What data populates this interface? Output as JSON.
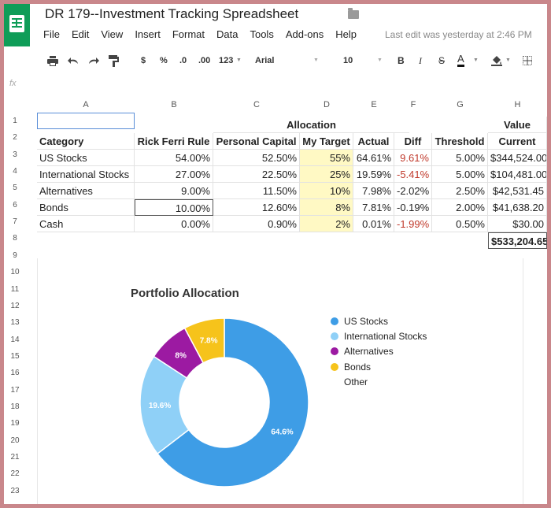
{
  "document": {
    "title": "DR 179--Investment Tracking Spreadsheet",
    "last_edit": "Last edit was yesterday at 2:46 PM"
  },
  "menu": [
    "File",
    "Edit",
    "View",
    "Insert",
    "Format",
    "Data",
    "Tools",
    "Add-ons",
    "Help"
  ],
  "toolbar": {
    "currency": "$",
    "percent": "%",
    "decrease_decimals": ".0",
    "increase_decimals": ".00",
    "more_formats": "123",
    "font": "Arial",
    "font_size": "10",
    "bold": "B",
    "italic": "I",
    "strikethrough": "S",
    "text_color": "A"
  },
  "formula_bar": {
    "icon": "fx"
  },
  "columns": [
    "A",
    "B",
    "C",
    "D",
    "E",
    "F",
    "G",
    "H"
  ],
  "row_numbers": [
    "1",
    "2",
    "3",
    "4",
    "5",
    "6",
    "7",
    "8",
    "9",
    "10",
    "11",
    "12",
    "13",
    "14",
    "15",
    "16",
    "17",
    "18",
    "19",
    "20",
    "21",
    "22",
    "23"
  ],
  "sheet": {
    "group_headers": {
      "allocation": "Allocation",
      "value": "Value"
    },
    "headers": [
      "Category",
      "Rick Ferri Rule",
      "Personal Capital",
      "My Target",
      "Actual",
      "Diff",
      "Threshold",
      "Current"
    ],
    "rows": [
      [
        "US Stocks",
        "54.00%",
        "52.50%",
        "55%",
        "64.61%",
        "9.61%",
        "5.00%",
        "$344,524.00"
      ],
      [
        "International Stocks",
        "27.00%",
        "22.50%",
        "25%",
        "19.59%",
        "-5.41%",
        "5.00%",
        "$104,481.00"
      ],
      [
        "Alternatives",
        "9.00%",
        "11.50%",
        "10%",
        "7.98%",
        "-2.02%",
        "2.50%",
        "$42,531.45"
      ],
      [
        "Bonds",
        "10.00%",
        "12.60%",
        "8%",
        "7.81%",
        "-0.19%",
        "2.00%",
        "$41,638.20"
      ],
      [
        "Cash",
        "0.00%",
        "0.90%",
        "2%",
        "0.01%",
        "-1.99%",
        "0.50%",
        "$30.00"
      ]
    ],
    "total": "$533,204.65",
    "colors": {
      "target_fill": "#fff9c4",
      "alert_red": "#c0392b"
    }
  },
  "chart_data": {
    "type": "pie",
    "title": "Portfolio Allocation",
    "donut": true,
    "legend_position": "right",
    "categories": [
      "US Stocks",
      "International Stocks",
      "Alternatives",
      "Bonds",
      "Other"
    ],
    "values": [
      64.6,
      19.6,
      8,
      7.8,
      0
    ],
    "labels": [
      "64.6%",
      "19.6%",
      "8%",
      "7.8%",
      ""
    ],
    "colors": [
      "#3e9de6",
      "#8fd0f7",
      "#9c1aa2",
      "#f6c31b",
      "#ffffff"
    ]
  }
}
